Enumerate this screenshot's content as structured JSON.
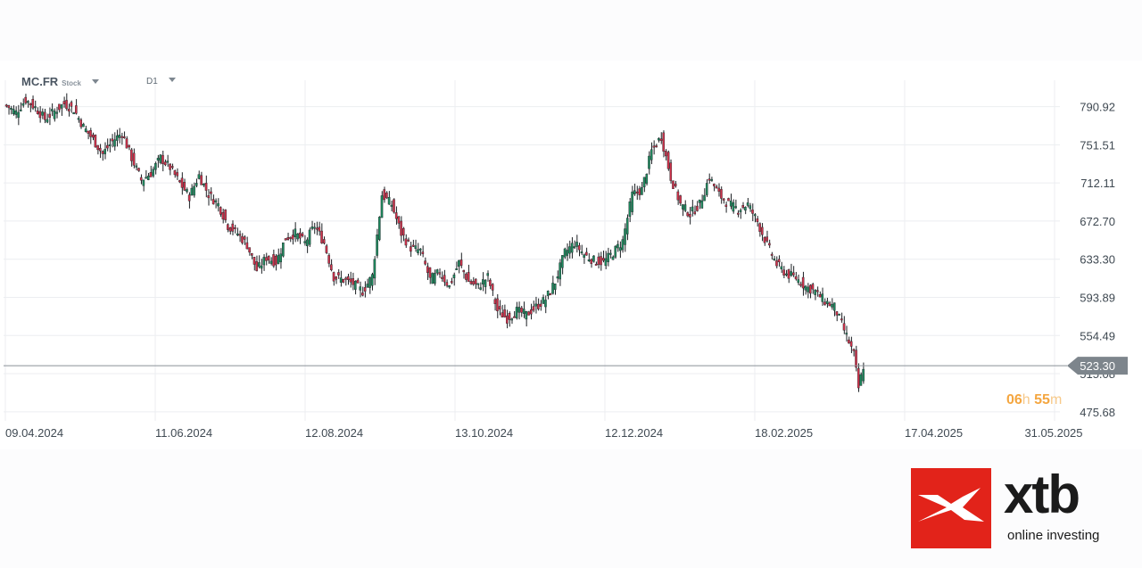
{
  "header": {
    "symbol": "MC.FR",
    "instrument_type": "Stock",
    "timeframe": "D1"
  },
  "countdown": {
    "hours": "06",
    "hours_unit": "h",
    "minutes": "55",
    "minutes_unit": "m"
  },
  "brand": {
    "name": "xtb",
    "tagline": "online investing",
    "color": "#e2231a"
  },
  "colors": {
    "up": "#1e8a5e",
    "down": "#d0324b",
    "grid": "#eceef1",
    "price_line": "#8a9198",
    "price_tag": "#7d858c"
  },
  "chart_data": {
    "type": "candlestick",
    "symbol": "MC.FR",
    "timeframe": "D1",
    "y_ticks": [
      "790.92",
      "751.51",
      "712.11",
      "672.70",
      "633.30",
      "593.89",
      "554.49",
      "515.08",
      "475.68"
    ],
    "x_ticks": [
      "09.04.2024",
      "11.06.2024",
      "12.08.2024",
      "13.10.2024",
      "12.12.2024",
      "18.02.2025",
      "17.04.2025",
      "31.05.2025"
    ],
    "ylim": [
      470,
      820
    ],
    "current_price": 523.3,
    "current_price_label": "523.30",
    "grid": true,
    "close_series": [
      {
        "i": 0,
        "v": 792
      },
      {
        "i": 4,
        "v": 785
      },
      {
        "i": 8,
        "v": 798
      },
      {
        "i": 12,
        "v": 790
      },
      {
        "i": 16,
        "v": 778
      },
      {
        "i": 20,
        "v": 786
      },
      {
        "i": 24,
        "v": 794
      },
      {
        "i": 28,
        "v": 788
      },
      {
        "i": 32,
        "v": 770
      },
      {
        "i": 36,
        "v": 757
      },
      {
        "i": 40,
        "v": 742
      },
      {
        "i": 44,
        "v": 755
      },
      {
        "i": 48,
        "v": 764
      },
      {
        "i": 52,
        "v": 738
      },
      {
        "i": 56,
        "v": 715
      },
      {
        "i": 60,
        "v": 722
      },
      {
        "i": 64,
        "v": 738
      },
      {
        "i": 68,
        "v": 728
      },
      {
        "i": 72,
        "v": 712
      },
      {
        "i": 76,
        "v": 698
      },
      {
        "i": 80,
        "v": 720
      },
      {
        "i": 84,
        "v": 700
      },
      {
        "i": 88,
        "v": 690
      },
      {
        "i": 92,
        "v": 668
      },
      {
        "i": 96,
        "v": 660
      },
      {
        "i": 100,
        "v": 648
      },
      {
        "i": 104,
        "v": 622
      },
      {
        "i": 108,
        "v": 635
      },
      {
        "i": 112,
        "v": 630
      },
      {
        "i": 116,
        "v": 655
      },
      {
        "i": 120,
        "v": 660
      },
      {
        "i": 124,
        "v": 650
      },
      {
        "i": 128,
        "v": 668
      },
      {
        "i": 132,
        "v": 650
      },
      {
        "i": 136,
        "v": 615
      },
      {
        "i": 140,
        "v": 612
      },
      {
        "i": 144,
        "v": 608
      },
      {
        "i": 148,
        "v": 600
      },
      {
        "i": 152,
        "v": 616
      },
      {
        "i": 156,
        "v": 700
      },
      {
        "i": 160,
        "v": 690
      },
      {
        "i": 164,
        "v": 660
      },
      {
        "i": 168,
        "v": 645
      },
      {
        "i": 172,
        "v": 642
      },
      {
        "i": 176,
        "v": 612
      },
      {
        "i": 180,
        "v": 620
      },
      {
        "i": 184,
        "v": 605
      },
      {
        "i": 188,
        "v": 630
      },
      {
        "i": 192,
        "v": 610
      },
      {
        "i": 196,
        "v": 605
      },
      {
        "i": 200,
        "v": 615
      },
      {
        "i": 204,
        "v": 580
      },
      {
        "i": 208,
        "v": 572
      },
      {
        "i": 212,
        "v": 580
      },
      {
        "i": 216,
        "v": 576
      },
      {
        "i": 220,
        "v": 584
      },
      {
        "i": 224,
        "v": 592
      },
      {
        "i": 228,
        "v": 610
      },
      {
        "i": 232,
        "v": 640
      },
      {
        "i": 236,
        "v": 650
      },
      {
        "i": 240,
        "v": 638
      },
      {
        "i": 244,
        "v": 632
      },
      {
        "i": 248,
        "v": 630
      },
      {
        "i": 252,
        "v": 640
      },
      {
        "i": 256,
        "v": 652
      },
      {
        "i": 260,
        "v": 700
      },
      {
        "i": 264,
        "v": 705
      },
      {
        "i": 268,
        "v": 745
      },
      {
        "i": 272,
        "v": 760
      },
      {
        "i": 276,
        "v": 718
      },
      {
        "i": 280,
        "v": 690
      },
      {
        "i": 284,
        "v": 680
      },
      {
        "i": 288,
        "v": 690
      },
      {
        "i": 292,
        "v": 718
      },
      {
        "i": 296,
        "v": 700
      },
      {
        "i": 300,
        "v": 690
      },
      {
        "i": 304,
        "v": 685
      },
      {
        "i": 308,
        "v": 690
      },
      {
        "i": 312,
        "v": 672
      },
      {
        "i": 316,
        "v": 648
      },
      {
        "i": 320,
        "v": 628
      },
      {
        "i": 324,
        "v": 618
      },
      {
        "i": 328,
        "v": 614
      },
      {
        "i": 332,
        "v": 605
      },
      {
        "i": 336,
        "v": 600
      },
      {
        "i": 340,
        "v": 590
      },
      {
        "i": 344,
        "v": 584
      },
      {
        "i": 348,
        "v": 560
      },
      {
        "i": 352,
        "v": 535
      },
      {
        "i": 354,
        "v": 500
      },
      {
        "i": 356,
        "v": 523
      }
    ]
  }
}
